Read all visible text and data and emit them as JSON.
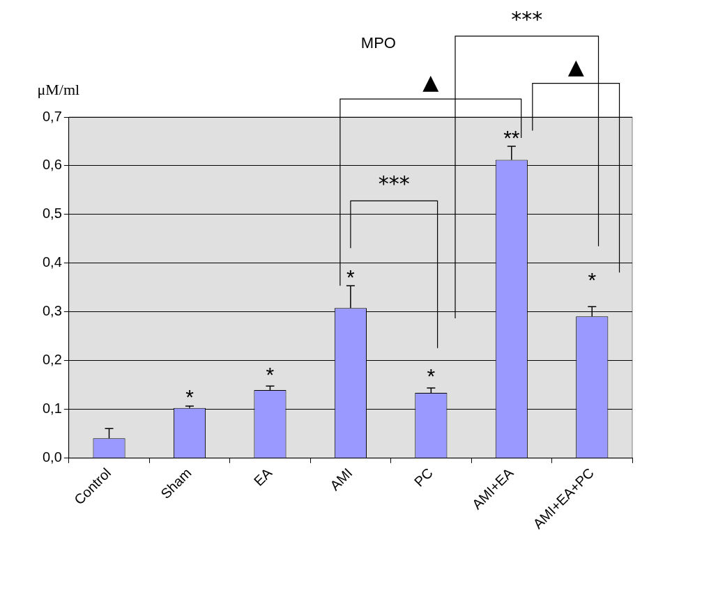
{
  "chart_data": {
    "type": "bar",
    "title": "MPO",
    "ylabel": "μM/ml",
    "categories": [
      "Control",
      "Sham",
      "EA",
      "AMI",
      "PC",
      "AMI+EA",
      "AMI+EA+PC"
    ],
    "values": [
      0.041,
      0.103,
      0.14,
      0.308,
      0.134,
      0.612,
      0.291
    ],
    "errors": [
      [
        0.041,
        0.061
      ],
      [
        0.103,
        0.107
      ],
      [
        0.14,
        0.148
      ],
      [
        0.308,
        0.354
      ],
      [
        0.134,
        0.144
      ],
      [
        0.612,
        0.64
      ],
      [
        0.291,
        0.311
      ]
    ],
    "color": "#9999ff",
    "ylim": [
      0,
      0.7
    ],
    "yticks": [
      {
        "value": 0,
        "label": "0,0"
      },
      {
        "value": 0.1,
        "label": "0,1"
      },
      {
        "value": 0.2,
        "label": "0,2"
      },
      {
        "value": 0.3,
        "label": "0,3"
      },
      {
        "value": 0.4,
        "label": "0,4"
      },
      {
        "value": 0.5,
        "label": "0,5"
      },
      {
        "value": 0.6,
        "label": "0,6"
      },
      {
        "value": 0.7,
        "label": "0,7"
      }
    ],
    "grid": "y",
    "annotations": [
      "*",
      "*",
      "*",
      "*",
      "**",
      "*",
      "***",
      "▲",
      "***",
      "▲"
    ]
  }
}
